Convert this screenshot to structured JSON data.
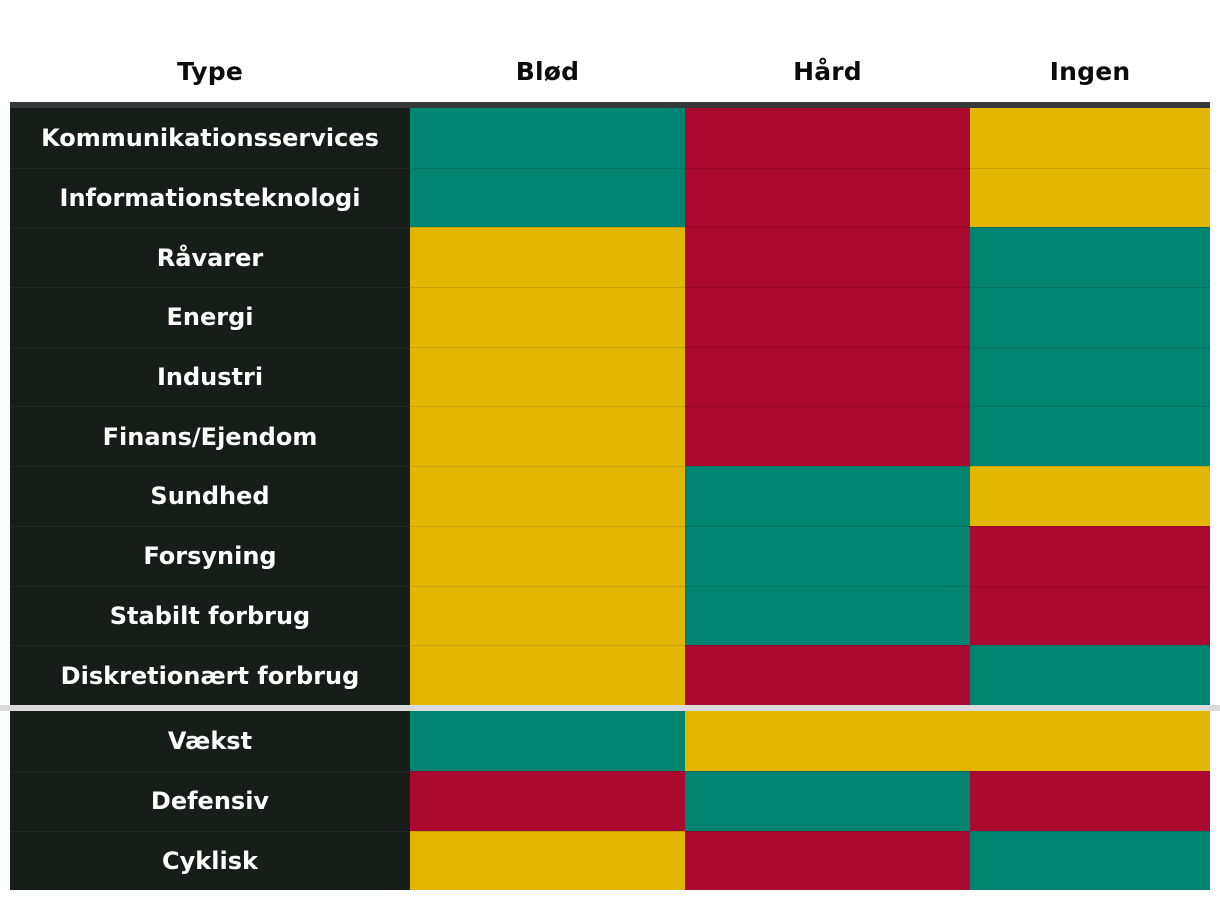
{
  "colors": {
    "positive_teal": "#008472",
    "negative_red": "#AA0A30",
    "neutral_yellow": "#E3B604",
    "row_label_background": "#171E19",
    "row_label_text": "#FFFFFF",
    "header_text": "#0B0B0B",
    "table_top_border": "#36383A",
    "group_separator": "#D9DAD9",
    "page_background": "#FFFFFF"
  },
  "chart_data": {
    "type": "heatmap",
    "title": "",
    "row_header_label": "Type",
    "columns": [
      "Blød",
      "Hård",
      "Ingen"
    ],
    "value_color_map": {
      "positive": "#008472",
      "negative": "#AA0A30",
      "neutral": "#E3B604"
    },
    "group_separator_after_row": 10,
    "rows": [
      {
        "label": "Kommunikationsservices",
        "values": [
          "positive",
          "negative",
          "neutral"
        ]
      },
      {
        "label": "Informationsteknologi",
        "values": [
          "positive",
          "negative",
          "neutral"
        ]
      },
      {
        "label": "Råvarer",
        "values": [
          "neutral",
          "negative",
          "positive"
        ]
      },
      {
        "label": "Energi",
        "values": [
          "neutral",
          "negative",
          "positive"
        ]
      },
      {
        "label": "Industri",
        "values": [
          "neutral",
          "negative",
          "positive"
        ]
      },
      {
        "label": "Finans/Ejendom",
        "values": [
          "neutral",
          "negative",
          "positive"
        ]
      },
      {
        "label": "Sundhed",
        "values": [
          "neutral",
          "positive",
          "neutral"
        ]
      },
      {
        "label": "Forsyning",
        "values": [
          "neutral",
          "positive",
          "negative"
        ]
      },
      {
        "label": "Stabilt forbrug",
        "values": [
          "neutral",
          "positive",
          "negative"
        ]
      },
      {
        "label": "Diskretionært forbrug",
        "values": [
          "neutral",
          "negative",
          "positive"
        ]
      },
      {
        "label": "Vækst",
        "values": [
          "positive",
          "neutral",
          "neutral"
        ]
      },
      {
        "label": "Defensiv",
        "values": [
          "negative",
          "positive",
          "negative"
        ]
      },
      {
        "label": "Cyklisk",
        "values": [
          "neutral",
          "negative",
          "positive"
        ]
      }
    ]
  }
}
